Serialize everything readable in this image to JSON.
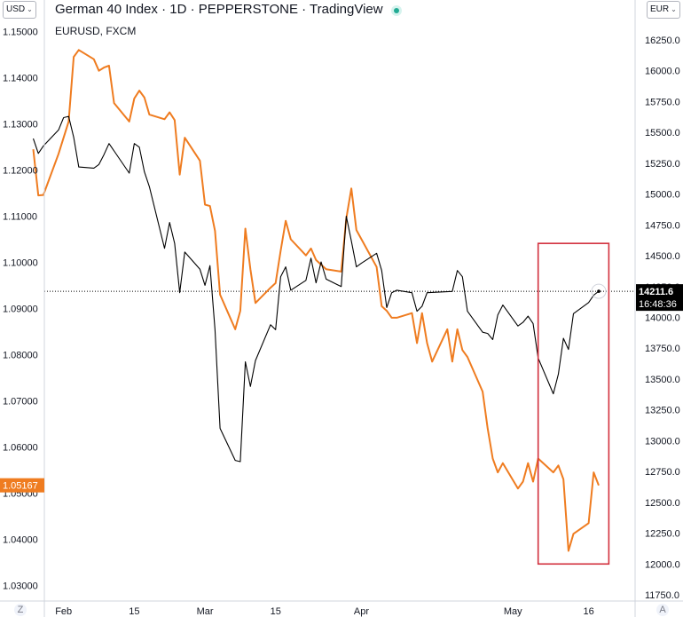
{
  "header": {
    "title": "German 40 Index · 1D · PEPPERSTONE · TradingView",
    "subtitle": "EURUSD, FXCM"
  },
  "controls": {
    "left_currency": "USD",
    "right_currency": "EUR",
    "left_corner": "Z",
    "right_corner": "A"
  },
  "colors": {
    "eurusd": "#ef7c20",
    "dax": "#000000",
    "highlight": "#d2303d",
    "grid": "#ffffff",
    "axis_text": "#131722"
  },
  "chart_data": {
    "type": "line",
    "x_ticks": [
      "Feb",
      "15",
      "Mar",
      "15",
      "Apr",
      "May",
      "16"
    ],
    "left_axis": {
      "ticks": [
        "1.15000",
        "1.14000",
        "1.13000",
        "1.12000",
        "1.11000",
        "1.10000",
        "1.09000",
        "1.08000",
        "1.07000",
        "1.06000",
        "1.05000",
        "1.04000",
        "1.03000"
      ],
      "range": [
        1.0275,
        1.1565
      ]
    },
    "right_axis": {
      "ticks": [
        "16250.0",
        "16000.0",
        "15750.0",
        "15500.0",
        "15250.0",
        "15000.0",
        "14750.0",
        "14500.0",
        "14250.0",
        "14000.0",
        "13750.0",
        "13500.0",
        "13250.0",
        "13000.0",
        "12750.0",
        "12500.0",
        "12250.0",
        "12000.0",
        "11750.0"
      ],
      "range": [
        11725,
        16450
      ]
    },
    "last_value_labels": {
      "eurusd": "1.05167",
      "dax": "14211.6",
      "countdown": "16:48:36"
    },
    "horizontal_reference": 14211.6,
    "highlight_box": {
      "x_start": "2022-05-06",
      "x_end": "2022-05-20",
      "y_top": 14600,
      "y_bottom": 12000
    },
    "series": [
      {
        "key": "eurusd",
        "axis": "left",
        "color": "#ef7c20",
        "points": [
          [
            "2022-01-26",
            1.1245
          ],
          [
            "2022-01-27",
            1.1145
          ],
          [
            "2022-01-28",
            1.1146
          ],
          [
            "2022-01-31",
            1.1235
          ],
          [
            "2022-02-01",
            1.127
          ],
          [
            "2022-02-02",
            1.1305
          ],
          [
            "2022-02-03",
            1.1445
          ],
          [
            "2022-02-04",
            1.146
          ],
          [
            "2022-02-07",
            1.144
          ],
          [
            "2022-02-08",
            1.1415
          ],
          [
            "2022-02-09",
            1.1422
          ],
          [
            "2022-02-10",
            1.1426
          ],
          [
            "2022-02-11",
            1.1345
          ],
          [
            "2022-02-14",
            1.1305
          ],
          [
            "2022-02-15",
            1.1355
          ],
          [
            "2022-02-16",
            1.1372
          ],
          [
            "2022-02-17",
            1.1357
          ],
          [
            "2022-02-18",
            1.132
          ],
          [
            "2022-02-21",
            1.131
          ],
          [
            "2022-02-22",
            1.1325
          ],
          [
            "2022-02-23",
            1.1308
          ],
          [
            "2022-02-24",
            1.119
          ],
          [
            "2022-02-25",
            1.127
          ],
          [
            "2022-02-28",
            1.122
          ],
          [
            "2022-03-01",
            1.1125
          ],
          [
            "2022-03-02",
            1.1122
          ],
          [
            "2022-03-03",
            1.1068
          ],
          [
            "2022-03-04",
            1.093
          ],
          [
            "2022-03-07",
            1.0855
          ],
          [
            "2022-03-08",
            1.0895
          ],
          [
            "2022-03-09",
            1.1073
          ],
          [
            "2022-03-10",
            1.0985
          ],
          [
            "2022-03-11",
            1.0912
          ],
          [
            "2022-03-14",
            1.0945
          ],
          [
            "2022-03-15",
            1.0955
          ],
          [
            "2022-03-16",
            1.1025
          ],
          [
            "2022-03-17",
            1.109
          ],
          [
            "2022-03-18",
            1.105
          ],
          [
            "2022-03-21",
            1.1015
          ],
          [
            "2022-03-22",
            1.103
          ],
          [
            "2022-03-23",
            1.1005
          ],
          [
            "2022-03-24",
            1.0995
          ],
          [
            "2022-03-25",
            1.0985
          ],
          [
            "2022-03-28",
            1.098
          ],
          [
            "2022-03-29",
            1.1095
          ],
          [
            "2022-03-30",
            1.116
          ],
          [
            "2022-03-31",
            1.107
          ],
          [
            "2022-04-01",
            1.105
          ],
          [
            "2022-04-04",
            1.099
          ],
          [
            "2022-04-05",
            1.0905
          ],
          [
            "2022-04-06",
            1.0895
          ],
          [
            "2022-04-07",
            1.088
          ],
          [
            "2022-04-08",
            1.088
          ],
          [
            "2022-04-11",
            1.089
          ],
          [
            "2022-04-12",
            1.0825
          ],
          [
            "2022-04-13",
            1.089
          ],
          [
            "2022-04-14",
            1.0825
          ],
          [
            "2022-04-15",
            1.0785
          ],
          [
            "2022-04-18",
            1.0855
          ],
          [
            "2022-04-19",
            1.0785
          ],
          [
            "2022-04-20",
            1.0855
          ],
          [
            "2022-04-21",
            1.081
          ],
          [
            "2022-04-22",
            1.0795
          ],
          [
            "2022-04-25",
            1.072
          ],
          [
            "2022-04-26",
            1.064
          ],
          [
            "2022-04-27",
            1.0575
          ],
          [
            "2022-04-28",
            1.0545
          ],
          [
            "2022-04-29",
            1.0565
          ],
          [
            "2022-05-02",
            1.051
          ],
          [
            "2022-05-03",
            1.0525
          ],
          [
            "2022-05-04",
            1.0565
          ],
          [
            "2022-05-05",
            1.0525
          ],
          [
            "2022-05-06",
            1.0575
          ],
          [
            "2022-05-09",
            1.0545
          ],
          [
            "2022-05-10",
            1.056
          ],
          [
            "2022-05-11",
            1.053
          ],
          [
            "2022-05-12",
            1.0375
          ],
          [
            "2022-05-13",
            1.0412
          ],
          [
            "2022-05-16",
            1.0435
          ],
          [
            "2022-05-17",
            1.0545
          ],
          [
            "2022-05-18",
            1.0517
          ]
        ]
      },
      {
        "key": "dax",
        "axis": "right",
        "color": "#000000",
        "points": [
          [
            "2022-01-26",
            15450
          ],
          [
            "2022-01-27",
            15330
          ],
          [
            "2022-01-28",
            15390
          ],
          [
            "2022-01-31",
            15520
          ],
          [
            "2022-02-01",
            15620
          ],
          [
            "2022-02-02",
            15630
          ],
          [
            "2022-02-03",
            15460
          ],
          [
            "2022-02-04",
            15220
          ],
          [
            "2022-02-07",
            15210
          ],
          [
            "2022-02-08",
            15240
          ],
          [
            "2022-02-09",
            15320
          ],
          [
            "2022-02-10",
            15410
          ],
          [
            "2022-02-11",
            15350
          ],
          [
            "2022-02-14",
            15170
          ],
          [
            "2022-02-15",
            15410
          ],
          [
            "2022-02-16",
            15380
          ],
          [
            "2022-02-17",
            15180
          ],
          [
            "2022-02-18",
            15060
          ],
          [
            "2022-02-21",
            14560
          ],
          [
            "2022-02-22",
            14770
          ],
          [
            "2022-02-23",
            14600
          ],
          [
            "2022-02-24",
            14200
          ],
          [
            "2022-02-25",
            14530
          ],
          [
            "2022-02-28",
            14390
          ],
          [
            "2022-03-01",
            14260
          ],
          [
            "2022-03-02",
            14420
          ],
          [
            "2022-03-03",
            13900
          ],
          [
            "2022-03-04",
            13100
          ],
          [
            "2022-03-07",
            12840
          ],
          [
            "2022-03-08",
            12830
          ],
          [
            "2022-03-09",
            13640
          ],
          [
            "2022-03-10",
            13440
          ],
          [
            "2022-03-11",
            13650
          ],
          [
            "2022-03-14",
            13940
          ],
          [
            "2022-03-15",
            13900
          ],
          [
            "2022-03-16",
            14330
          ],
          [
            "2022-03-17",
            14410
          ],
          [
            "2022-03-18",
            14220
          ],
          [
            "2022-03-21",
            14300
          ],
          [
            "2022-03-22",
            14480
          ],
          [
            "2022-03-23",
            14280
          ],
          [
            "2022-03-24",
            14450
          ],
          [
            "2022-03-25",
            14310
          ],
          [
            "2022-03-28",
            14250
          ],
          [
            "2022-03-29",
            14820
          ],
          [
            "2022-03-30",
            14620
          ],
          [
            "2022-03-31",
            14410
          ],
          [
            "2022-04-01",
            14440
          ],
          [
            "2022-04-04",
            14520
          ],
          [
            "2022-04-05",
            14380
          ],
          [
            "2022-04-06",
            14080
          ],
          [
            "2022-04-07",
            14200
          ],
          [
            "2022-04-08",
            14220
          ],
          [
            "2022-04-11",
            14200
          ],
          [
            "2022-04-12",
            14050
          ],
          [
            "2022-04-13",
            14090
          ],
          [
            "2022-04-14",
            14200
          ],
          [
            "2022-04-19",
            14210
          ],
          [
            "2022-04-20",
            14380
          ],
          [
            "2022-04-21",
            14330
          ],
          [
            "2022-04-22",
            14050
          ],
          [
            "2022-04-25",
            13880
          ],
          [
            "2022-04-26",
            13870
          ],
          [
            "2022-04-27",
            13820
          ],
          [
            "2022-04-28",
            14020
          ],
          [
            "2022-04-29",
            14100
          ],
          [
            "2022-05-02",
            13930
          ],
          [
            "2022-05-03",
            13960
          ],
          [
            "2022-05-04",
            14010
          ],
          [
            "2022-05-05",
            13950
          ],
          [
            "2022-05-06",
            13670
          ],
          [
            "2022-05-09",
            13380
          ],
          [
            "2022-05-10",
            13540
          ],
          [
            "2022-05-11",
            13830
          ],
          [
            "2022-05-12",
            13740
          ],
          [
            "2022-05-13",
            14030
          ],
          [
            "2022-05-16",
            14120
          ],
          [
            "2022-05-17",
            14180
          ],
          [
            "2022-05-18",
            14211.6
          ]
        ]
      }
    ]
  }
}
